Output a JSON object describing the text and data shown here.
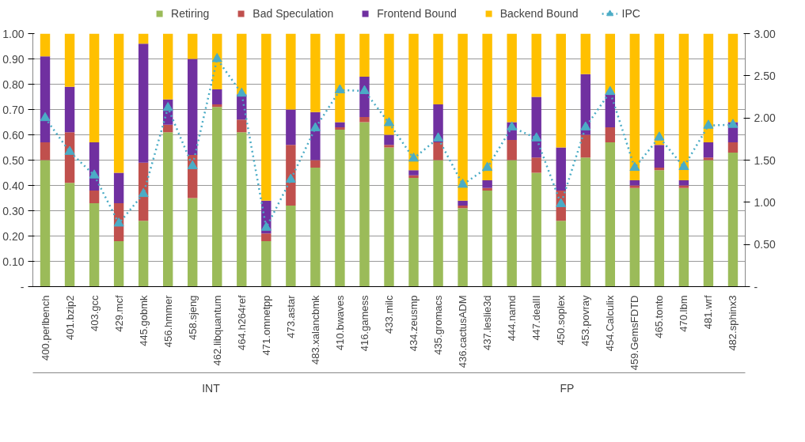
{
  "chart_data": {
    "type": "bar",
    "stacked": true,
    "grid": "y",
    "legend": "top",
    "categories": [
      "400.perlbench",
      "401.bzip2",
      "403.gcc",
      "429.mcf",
      "445.gobmk",
      "456.hmmer",
      "458.sjeng",
      "462.libquantum",
      "464.h264ref",
      "471.omnetpp",
      "473.astar",
      "483.xalancbmk",
      "410.bwaves",
      "416.gamess",
      "433.milc",
      "434.zeusmp",
      "435.gromacs",
      "436.cactusADM",
      "437.leslie3d",
      "444.namd",
      "447.dealII",
      "450.soplex",
      "453.povray",
      "454.Calculix",
      "459.GemsFDTD",
      "465.tonto",
      "470.lbm",
      "481.wrf",
      "482.sphinx3"
    ],
    "series": [
      {
        "name": "Retiring",
        "color": "#9bbb59",
        "values": [
          0.5,
          0.41,
          0.33,
          0.18,
          0.26,
          0.61,
          0.35,
          0.71,
          0.61,
          0.18,
          0.32,
          0.47,
          0.62,
          0.65,
          0.55,
          0.43,
          0.5,
          0.31,
          0.38,
          0.5,
          0.45,
          0.26,
          0.51,
          0.57,
          0.39,
          0.46,
          0.39,
          0.5,
          0.53
        ]
      },
      {
        "name": "Bad Speculation",
        "color": "#c0504d",
        "values": [
          0.07,
          0.2,
          0.05,
          0.15,
          0.23,
          0.03,
          0.17,
          0.01,
          0.05,
          0.03,
          0.24,
          0.03,
          0.01,
          0.02,
          0.01,
          0.01,
          0.07,
          0.01,
          0.01,
          0.08,
          0.06,
          0.12,
          0.09,
          0.06,
          0.01,
          0.01,
          0.01,
          0.01,
          0.04
        ]
      },
      {
        "name": "Frontend Bound",
        "color": "#7030a0",
        "values": [
          0.34,
          0.18,
          0.19,
          0.12,
          0.47,
          0.1,
          0.38,
          0.06,
          0.1,
          0.13,
          0.14,
          0.19,
          0.02,
          0.16,
          0.04,
          0.02,
          0.15,
          0.02,
          0.03,
          0.07,
          0.24,
          0.17,
          0.24,
          0.13,
          0.02,
          0.09,
          0.02,
          0.06,
          0.08
        ]
      },
      {
        "name": "Backend Bound",
        "color": "#ffc000",
        "values": [
          0.09,
          0.21,
          0.43,
          0.55,
          0.04,
          0.26,
          0.1,
          0.22,
          0.24,
          0.66,
          0.3,
          0.31,
          0.35,
          0.17,
          0.4,
          0.54,
          0.28,
          0.66,
          0.58,
          0.35,
          0.25,
          0.45,
          0.16,
          0.24,
          0.58,
          0.44,
          0.58,
          0.43,
          0.35
        ]
      },
      {
        "name": "IPC",
        "type": "line",
        "axis": "y2",
        "color": "#4bacc6",
        "marker": "triangle",
        "line_style": "dotted",
        "values": [
          2.0,
          1.6,
          1.32,
          0.75,
          1.1,
          2.12,
          1.43,
          2.7,
          2.29,
          0.7,
          1.27,
          1.88,
          2.33,
          2.32,
          1.94,
          1.52,
          1.76,
          1.21,
          1.41,
          1.89,
          1.76,
          0.98,
          1.89,
          2.31,
          1.41,
          1.77,
          1.42,
          1.91,
          1.92
        ]
      }
    ],
    "ylim": [
      0,
      1
    ],
    "yticks": [
      {
        "value": 0,
        "label": "-"
      },
      {
        "value": 0.1,
        "label": "0.10"
      },
      {
        "value": 0.2,
        "label": "0.20"
      },
      {
        "value": 0.3,
        "label": "0.30"
      },
      {
        "value": 0.4,
        "label": "0.40"
      },
      {
        "value": 0.5,
        "label": "0.50"
      },
      {
        "value": 0.6,
        "label": "0.60"
      },
      {
        "value": 0.7,
        "label": "0.70"
      },
      {
        "value": 0.8,
        "label": "0.80"
      },
      {
        "value": 0.9,
        "label": "0.90"
      },
      {
        "value": 1,
        "label": "1.00"
      }
    ],
    "y2lim": [
      0,
      3
    ],
    "y2ticks": [
      {
        "value": 0,
        "label": "-"
      },
      {
        "value": 0.5,
        "label": "0.50"
      },
      {
        "value": 1,
        "label": "1.00"
      },
      {
        "value": 1.5,
        "label": "1.50"
      },
      {
        "value": 2,
        "label": "2.00"
      },
      {
        "value": 2.5,
        "label": "2.50"
      },
      {
        "value": 3,
        "label": "3.00"
      }
    ],
    "annotations": [
      "INT",
      "FP"
    ]
  }
}
